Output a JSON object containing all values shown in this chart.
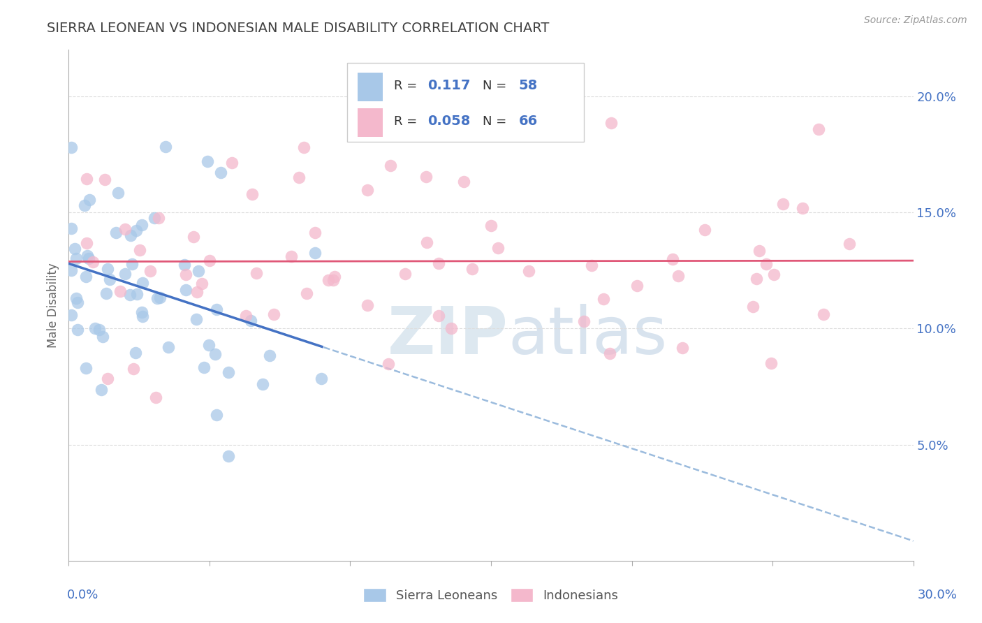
{
  "title": "SIERRA LEONEAN VS INDONESIAN MALE DISABILITY CORRELATION CHART",
  "source": "Source: ZipAtlas.com",
  "ylabel": "Male Disability",
  "xlim": [
    0.0,
    0.3
  ],
  "ylim": [
    0.0,
    0.22
  ],
  "yticks": [
    0.05,
    0.1,
    0.15,
    0.2
  ],
  "ytick_labels": [
    "5.0%",
    "10.0%",
    "15.0%",
    "20.0%"
  ],
  "blue_scatter_color": "#a8c8e8",
  "pink_scatter_color": "#f4b8cc",
  "blue_line_color": "#4472c4",
  "pink_line_color": "#e05878",
  "blue_dash_color": "#8ab0d8",
  "text_dark": "#333333",
  "text_blue": "#4472c4",
  "title_color": "#404040",
  "source_color": "#999999",
  "watermark_color": "#dde8f0",
  "background_color": "#ffffff",
  "grid_color": "#dddddd",
  "legend_r1_val": "0.117",
  "legend_n1_val": "58",
  "legend_r2_val": "0.058",
  "legend_n2_val": "66",
  "sl_seed": 12,
  "id_seed": 34
}
